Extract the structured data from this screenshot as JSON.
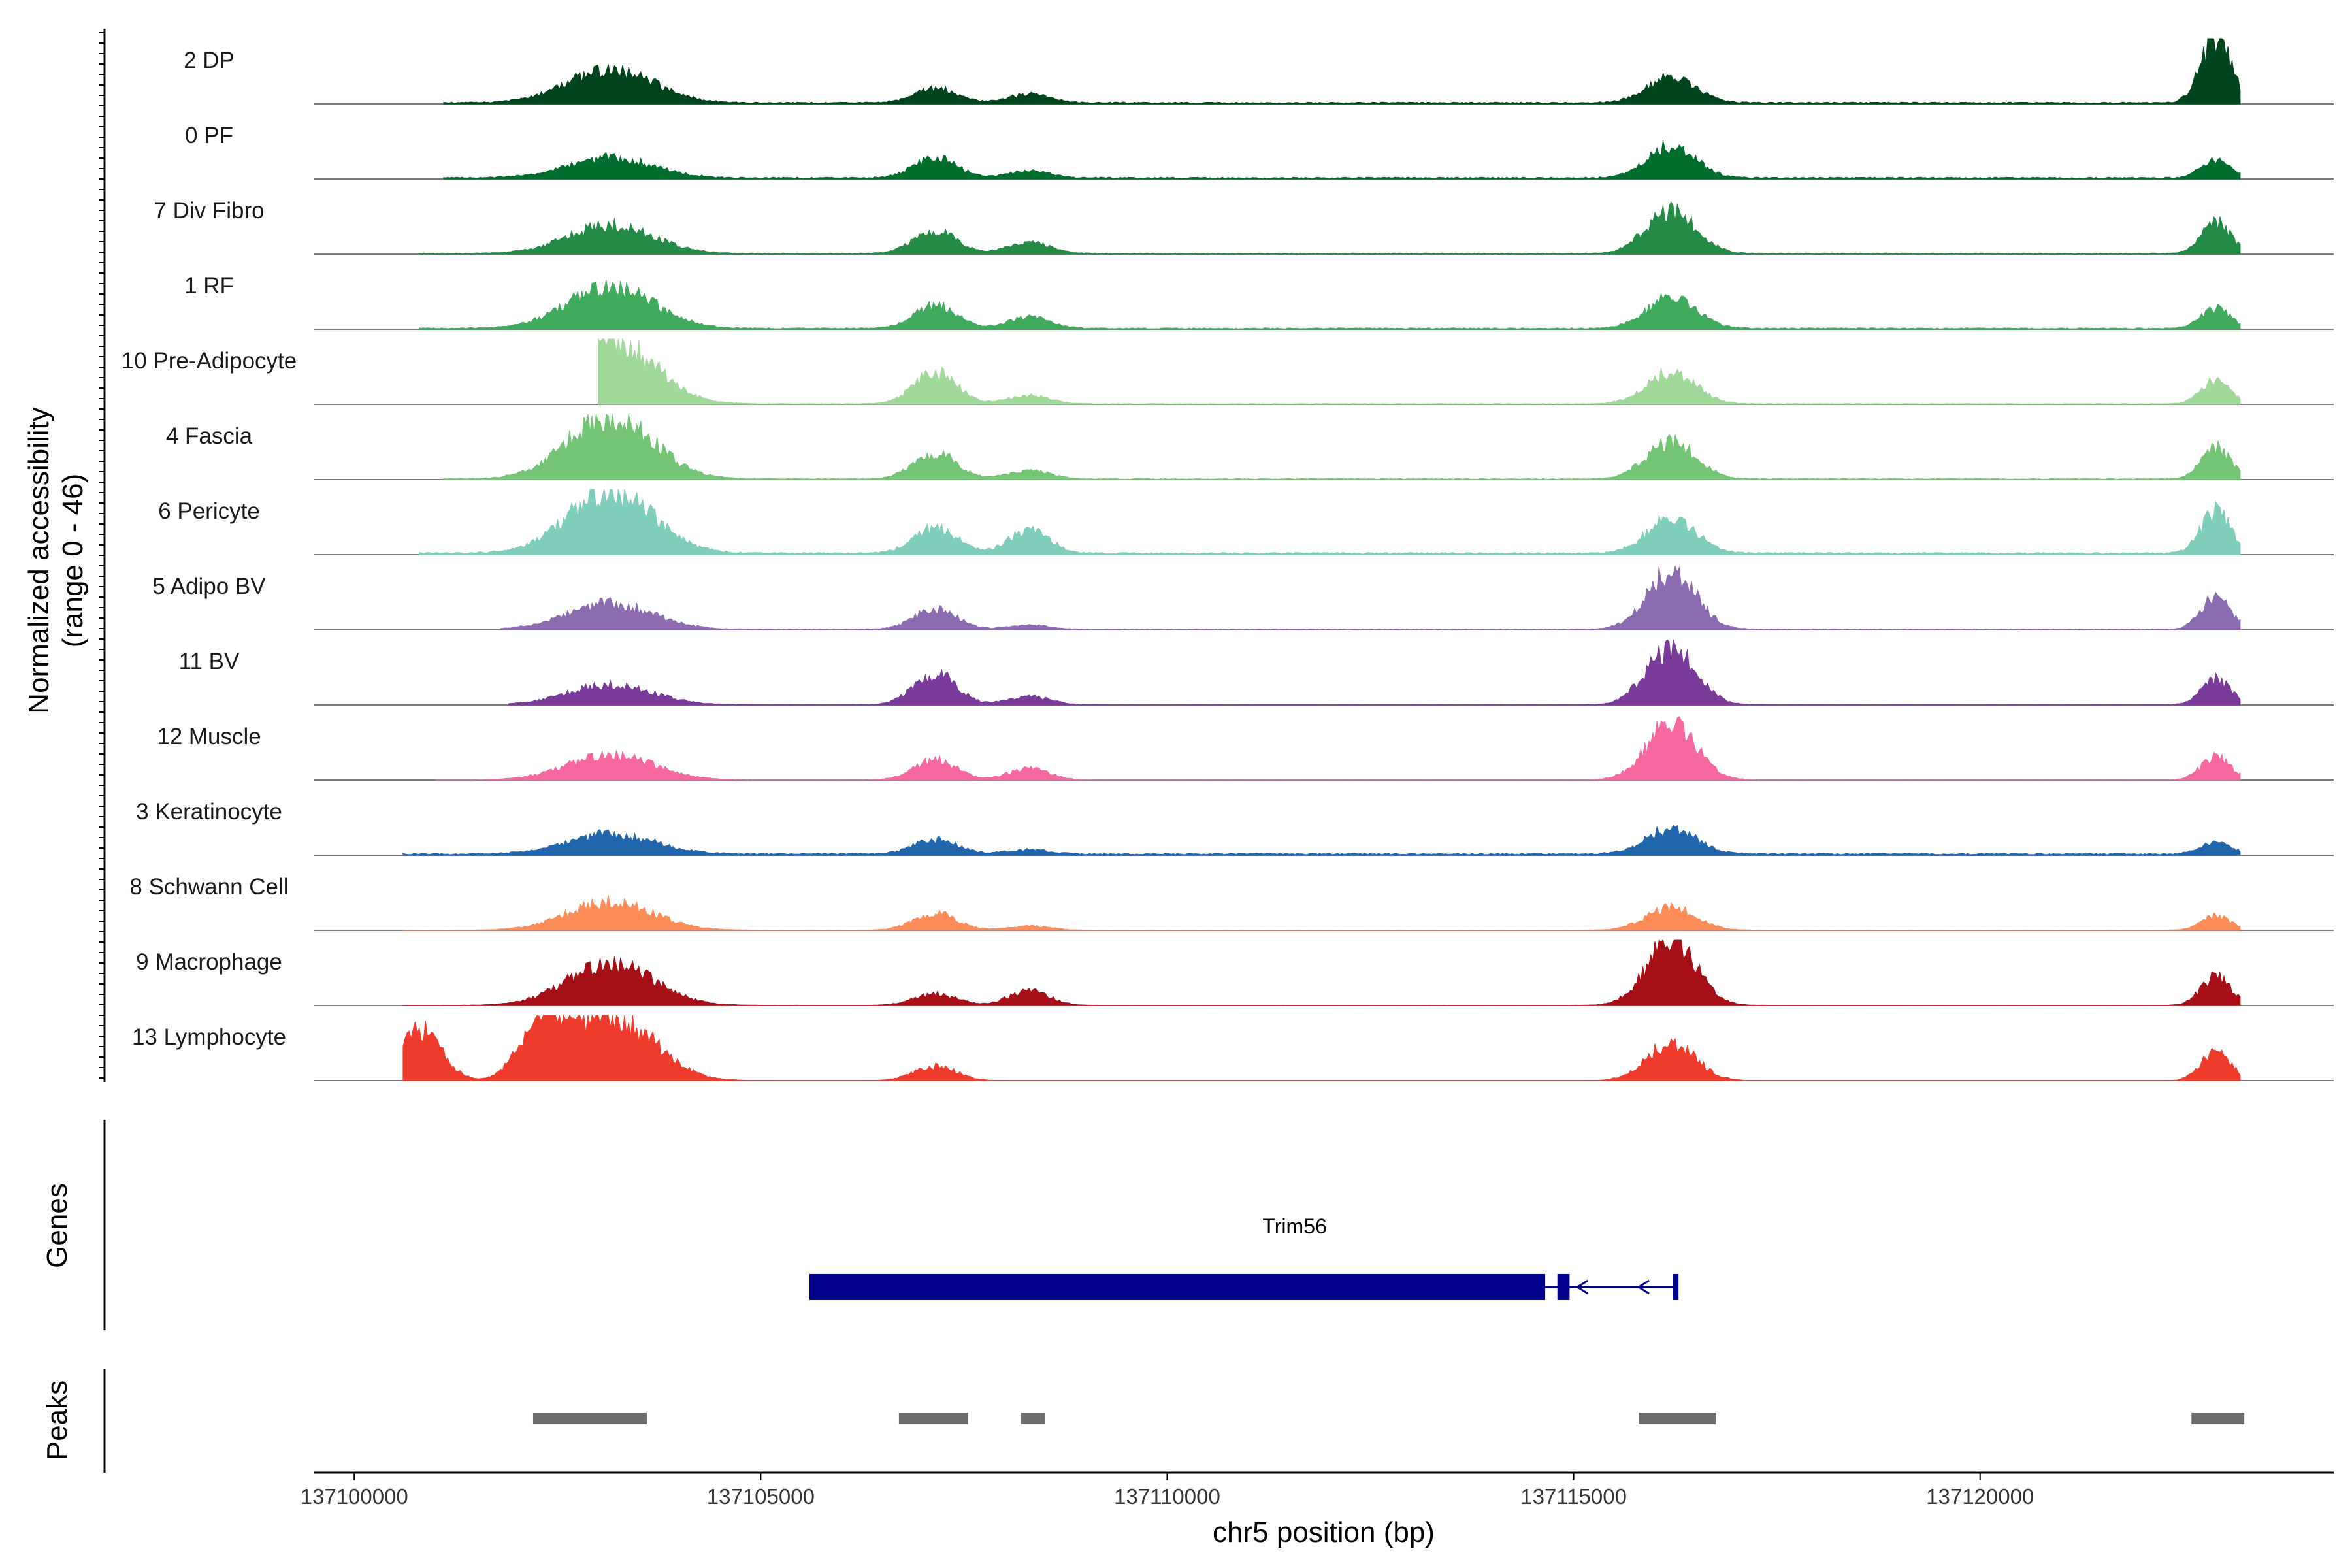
{
  "chart_data": {
    "type": "area",
    "title": "",
    "ylabel_line1": "Normalized accessibility",
    "ylabel_line2": "(range 0 - 46)",
    "xlabel": "chr5 position (bp)",
    "xlim": [
      137099500,
      137124350
    ],
    "ylim": [
      0,
      46
    ],
    "x_ticks": [
      {
        "value": 137100000,
        "label": "137100000"
      },
      {
        "value": 137105000,
        "label": "137105000"
      },
      {
        "value": 137110000,
        "label": "137110000"
      },
      {
        "value": 137115000,
        "label": "137115000"
      },
      {
        "value": 137120000,
        "label": "137120000"
      }
    ],
    "peak_centers": [
      137103150,
      137107150,
      137108300,
      137116200,
      137122900
    ],
    "tracks": [
      {
        "name": "2 DP",
        "color": "#00441b",
        "start": 137101100,
        "heights": [
          24,
          10,
          6,
          18,
          46
        ],
        "background": 1.0
      },
      {
        "name": "0 PF",
        "color": "#006d2c",
        "start": 137101100,
        "heights": [
          14,
          14,
          5,
          22,
          12
        ],
        "background": 1.0
      },
      {
        "name": "7 Div Fibro",
        "color": "#238b45",
        "start": 137100800,
        "heights": [
          20,
          16,
          8,
          30,
          22
        ],
        "background": 0.6
      },
      {
        "name": "1 RF",
        "color": "#41ab5d",
        "start": 137100800,
        "heights": [
          30,
          16,
          8,
          22,
          14
        ],
        "background": 0.8
      },
      {
        "name": "10 Pre-Adipocyte",
        "color": "#a1d99b",
        "start": 137103000,
        "heights": [
          46,
          22,
          6,
          22,
          16
        ],
        "background": 0.5
      },
      {
        "name": "4 Fascia",
        "color": "#74c476",
        "start": 137101100,
        "heights": [
          44,
          18,
          6,
          26,
          22
        ],
        "background": 0.6
      },
      {
        "name": "6 Pericyte",
        "color": "#7fcdbb",
        "start": 137100800,
        "heights": [
          44,
          18,
          16,
          24,
          30
        ],
        "background": 1.2
      },
      {
        "name": "5 Adipo BV",
        "color": "#8c6bb1",
        "start": 137101800,
        "heights": [
          18,
          14,
          3,
          40,
          22
        ],
        "background": 0.5
      },
      {
        "name": "11 BV",
        "color": "#7a3a9a",
        "start": 137101900,
        "heights": [
          14,
          22,
          6,
          40,
          18
        ],
        "background": 0.2
      },
      {
        "name": "12 Muscle",
        "color": "#f768a1",
        "start": 137101000,
        "heights": [
          18,
          14,
          8,
          40,
          16
        ],
        "background": 0.2
      },
      {
        "name": "3 Keratinocyte",
        "color": "#2166ac",
        "start": 137100600,
        "heights": [
          14,
          10,
          3,
          18,
          8
        ],
        "background": 1.2
      },
      {
        "name": "8 Schwann Cell",
        "color": "#fc8d59",
        "start": 137100600,
        "heights": [
          20,
          12,
          3,
          16,
          10
        ],
        "background": 0.2
      },
      {
        "name": "9 Macrophage",
        "color": "#a50f15",
        "start": 137100600,
        "heights": [
          30,
          8,
          10,
          46,
          20
        ],
        "background": 0.2
      },
      {
        "name": "13 Lymphocyte",
        "color": "#ef3b2c",
        "start": 137100600,
        "heights": [
          46,
          10,
          0,
          26,
          20
        ],
        "background": 0.0,
        "extra_peaks": [
          137100800,
          137102300
        ]
      }
    ],
    "genes": {
      "track_title": "Genes",
      "name": "Trim56",
      "strand": "-",
      "color": "#00008b",
      "cds_start": 137105600,
      "cds_end": 137114650,
      "exon2_start": 137114800,
      "exon2_end": 137114950,
      "utr_start": 137114650,
      "tss": 137116250
    },
    "peaks": {
      "track_title": "Peaks",
      "color": "#6e6e6e",
      "regions": [
        [
          137102200,
          137103600
        ],
        [
          137106700,
          137107550
        ],
        [
          137108200,
          137108500
        ],
        [
          137115800,
          137116750
        ],
        [
          137122600,
          137123250
        ]
      ]
    }
  }
}
